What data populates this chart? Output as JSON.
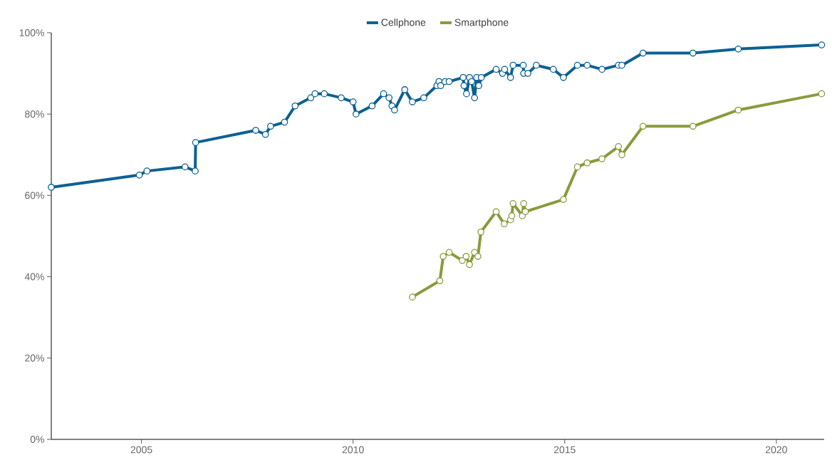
{
  "chart_data": {
    "type": "line",
    "x": [
      2002.87,
      2004.95,
      2005.13,
      2006.03,
      2006.27,
      2006.28,
      2007.7,
      2007.93,
      2008.05,
      2008.38,
      2008.63,
      2009.0,
      2009.1,
      2009.32,
      2009.72,
      2010.0,
      2010.07,
      2010.45,
      2010.72,
      2010.85,
      2010.92,
      2010.98,
      2011.22,
      2011.4,
      2011.67,
      2011.98,
      2012.03,
      2012.07,
      2012.17,
      2012.27,
      2012.6,
      2012.62,
      2012.68,
      2012.75,
      2012.8,
      2012.87,
      2012.92,
      2012.97,
      2013.03,
      2013.38,
      2013.53,
      2013.58,
      2013.72,
      2013.78,
      2014.02,
      2014.03,
      2014.13,
      2014.33,
      2014.73,
      2014.97,
      2015.3,
      2015.53,
      2015.88,
      2016.27,
      2016.35,
      2016.85,
      2018.03,
      2019.1,
      2021.07
    ],
    "series": [
      {
        "name": "Cellphone",
        "color": "#0b6194",
        "values": [
          62,
          65,
          66,
          67,
          66,
          73,
          76,
          75,
          77,
          78,
          82,
          84,
          85,
          85,
          84,
          83,
          80,
          82,
          85,
          84,
          82,
          81,
          86,
          83,
          84,
          87,
          88,
          87,
          88,
          88,
          89,
          87,
          85,
          89,
          88,
          84,
          89,
          87,
          89,
          91,
          90,
          91,
          89,
          92,
          92,
          90,
          90,
          92,
          91,
          89,
          92,
          92,
          91,
          92,
          92,
          95,
          95,
          96,
          97
        ]
      },
      {
        "name": "Smartphone",
        "color": "#8a9a3c",
        "x": [
          2011.4,
          2012.05,
          2012.13,
          2012.27,
          2012.58,
          2012.67,
          2012.75,
          2012.87,
          2012.95,
          2013.02,
          2013.38,
          2013.57,
          2013.72,
          2013.75,
          2013.78,
          2014.0,
          2014.03,
          2014.07,
          2014.97,
          2015.3,
          2015.53,
          2015.88,
          2016.27,
          2016.35,
          2016.85,
          2018.03,
          2019.1,
          2021.07
        ],
        "values": [
          35,
          39,
          45,
          46,
          44,
          45,
          43,
          46,
          45,
          51,
          56,
          53,
          54,
          55,
          58,
          55,
          58,
          56,
          59,
          67,
          68,
          69,
          72,
          70,
          77,
          77,
          81,
          85
        ]
      }
    ],
    "xlim": [
      2002.87,
      2021.13
    ],
    "xticks": [
      2005,
      2010,
      2015,
      2020
    ],
    "ylim": [
      0,
      100
    ],
    "yticks": [
      {
        "value": 0,
        "label": "0%"
      },
      {
        "value": 20,
        "label": "20%"
      },
      {
        "value": 40,
        "label": "40%"
      },
      {
        "value": 60,
        "label": "60%"
      },
      {
        "value": 80,
        "label": "80%"
      },
      {
        "value": 100,
        "label": "100%"
      }
    ],
    "legend": "top",
    "marker": "circle",
    "line_style": "solid"
  }
}
